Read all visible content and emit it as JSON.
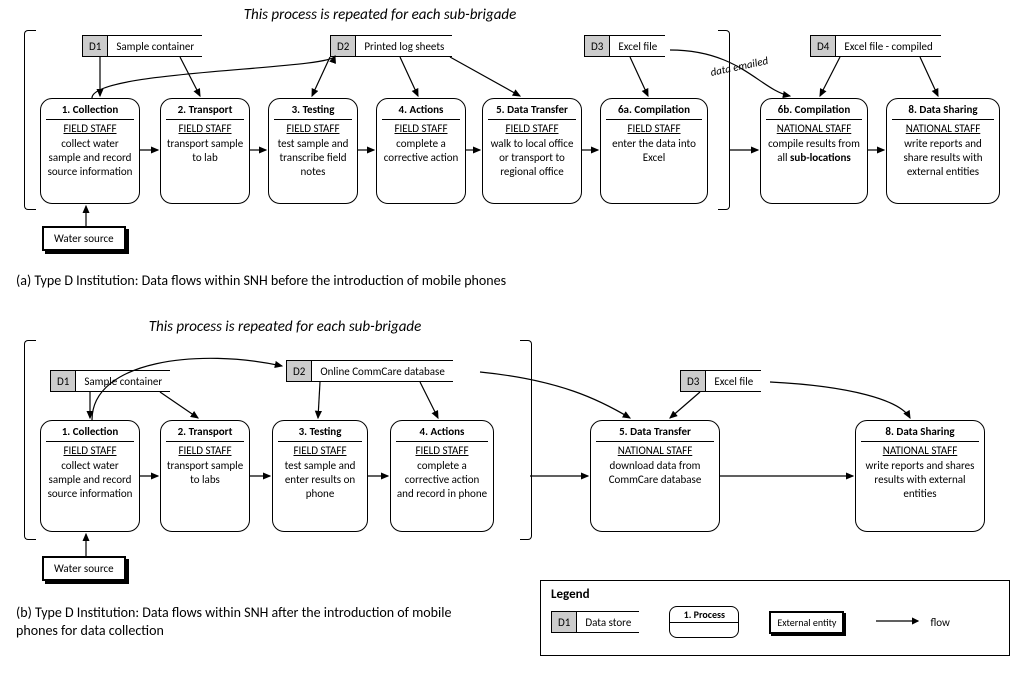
{
  "colors": {
    "bg": "#ffffff",
    "line": "#000000",
    "ds_fill": "#cccccc"
  },
  "repeat_text": "This process is repeated for each sub-brigade",
  "entity_water": "Water source",
  "annot_email": "data emailed",
  "diagram_a": {
    "datastores": {
      "d1": {
        "id": "D1",
        "label": "Sample container"
      },
      "d2": {
        "id": "D2",
        "label": "Printed log sheets"
      },
      "d3": {
        "id": "D3",
        "label": "Excel file"
      },
      "d4": {
        "id": "D4",
        "label": "Excel file - compiled"
      }
    },
    "processes": {
      "p1": {
        "title": "1. Collection",
        "actor": "FIELD STAFF",
        "text": "collect water sample and record source information"
      },
      "p2": {
        "title": "2. Transport",
        "actor": "FIELD STAFF",
        "text": "transport sample to lab"
      },
      "p3": {
        "title": "3. Testing",
        "actor": "FIELD STAFF",
        "text": "test sample and transcribe field notes"
      },
      "p4": {
        "title": "4. Actions",
        "actor": "FIELD STAFF",
        "text": "complete a corrective action"
      },
      "p5": {
        "title": "5. Data Transfer",
        "actor": "FIELD STAFF",
        "text": "walk to local office or transport to regional office"
      },
      "p6a": {
        "title": "6a. Compilation",
        "actor": "FIELD STAFF",
        "text": "enter the data into Excel"
      },
      "p6b": {
        "title": "6b. Compilation",
        "actor": "NATIONAL STAFF",
        "text": "compile results from all sub-locations"
      },
      "p8": {
        "title": "8. Data Sharing",
        "actor": "NATIONAL STAFF",
        "text": "write reports and share results with external entities"
      }
    },
    "caption": "(a) Type D Institution: Data flows within SNH before the introduction of mobile phones"
  },
  "diagram_b": {
    "datastores": {
      "d1": {
        "id": "D1",
        "label": "Sample container"
      },
      "d2": {
        "id": "D2",
        "label": "Online CommCare database"
      },
      "d3": {
        "id": "D3",
        "label": "Excel file"
      }
    },
    "processes": {
      "p1": {
        "title": "1. Collection",
        "actor": "FIELD STAFF",
        "text": "collect water sample and record source information"
      },
      "p2": {
        "title": "2. Transport",
        "actor": "FIELD STAFF",
        "text": "transport sample to labs"
      },
      "p3": {
        "title": "3. Testing",
        "actor": "FIELD STAFF",
        "text": "test sample and enter results on phone"
      },
      "p4": {
        "title": "4. Actions",
        "actor": "FIELD STAFF",
        "text": "complete a corrective action and record in phone"
      },
      "p5": {
        "title": "5. Data Transfer",
        "actor": "NATIONAL STAFF",
        "text": "download data from CommCare database"
      },
      "p8": {
        "title": "8. Data Sharing",
        "actor": "NATIONAL STAFF",
        "text": "write reports and shares results with external entities"
      }
    },
    "caption": "(b) Type D Institution: Data flows within SNH after the introduction of mobile phones for data collection"
  },
  "legend": {
    "title": "Legend",
    "ds": {
      "id": "D1",
      "label": "Data store"
    },
    "process": "1. Process",
    "entity": "External entity",
    "flow": "flow"
  }
}
